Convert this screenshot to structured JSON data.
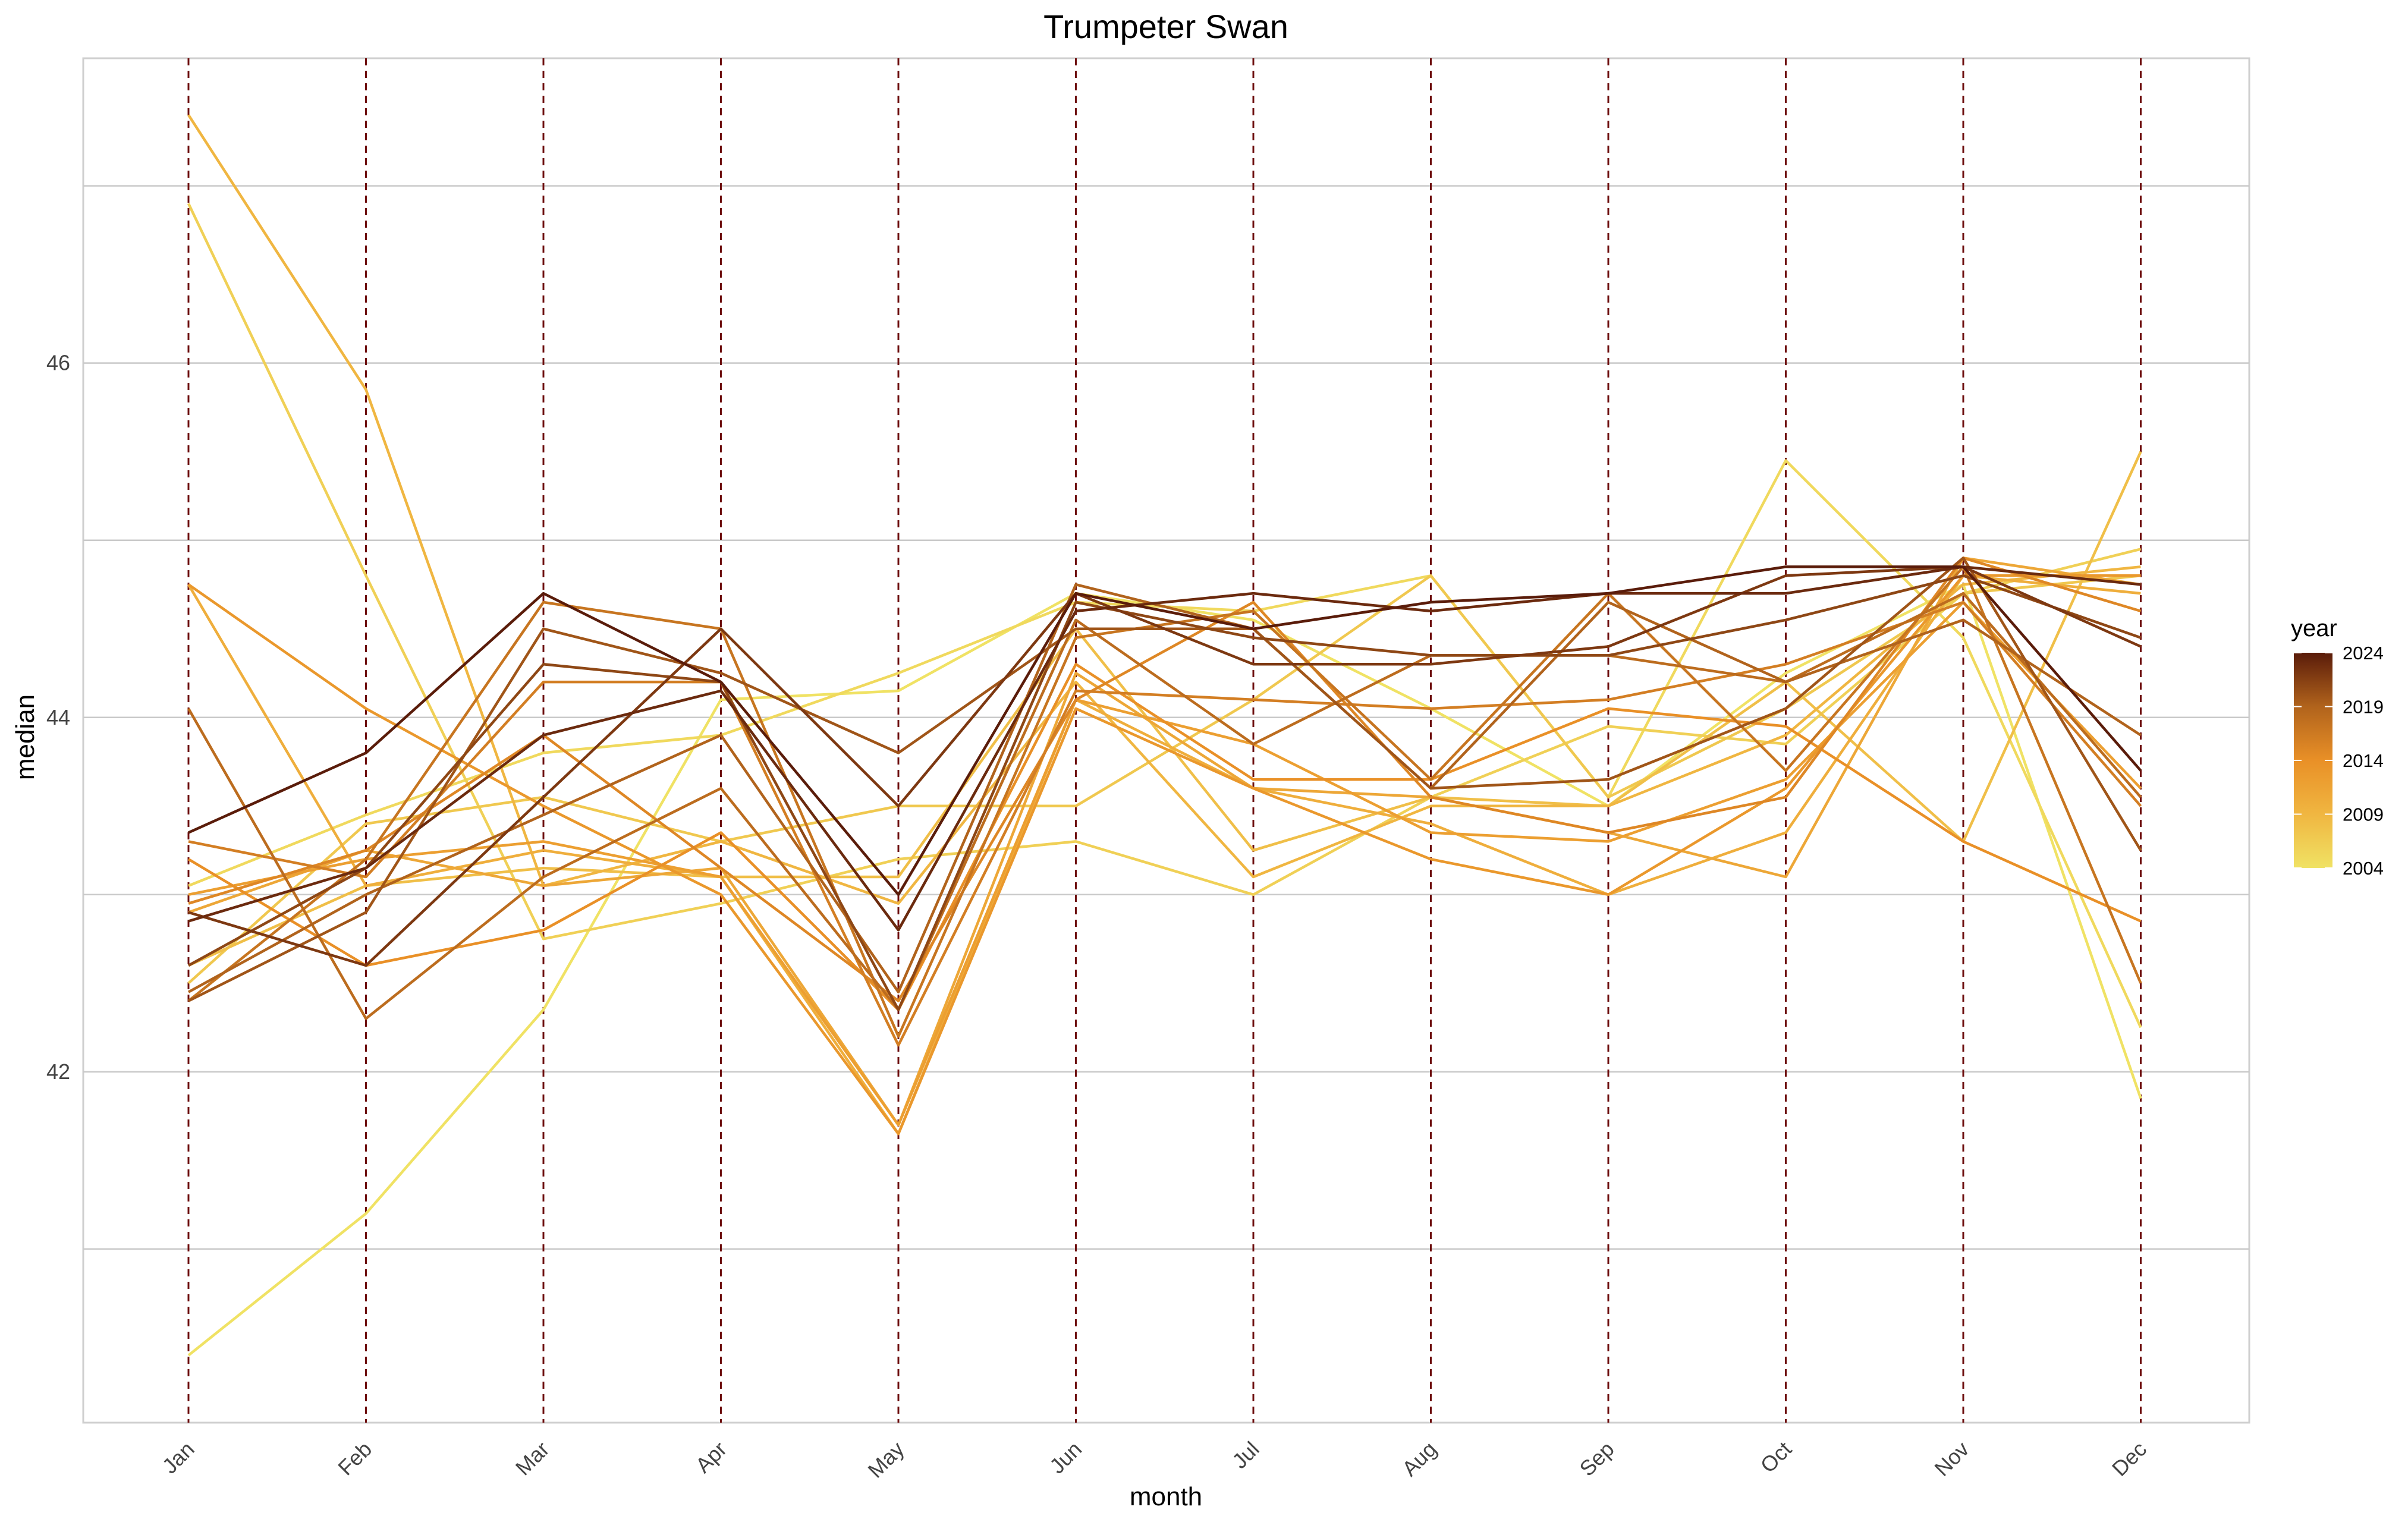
{
  "chart_data": {
    "type": "line",
    "title": "Trumpeter Swan",
    "xlabel": "month",
    "ylabel": "median",
    "categories": [
      "Jan",
      "Feb",
      "Mar",
      "Apr",
      "May",
      "Jun",
      "Jul",
      "Aug",
      "Sep",
      "Oct",
      "Nov",
      "Dec"
    ],
    "ylim": [
      40.02,
      47.72
    ],
    "y_ticks": [
      42,
      44,
      46
    ],
    "grid": true,
    "vertical_reference_lines": "dashed at every month",
    "legend": {
      "title": "year",
      "position": "right",
      "labels": [
        2004,
        2009,
        2014,
        2019,
        2024
      ],
      "range": [
        2004,
        2024
      ],
      "colors": [
        "#f0e264",
        "#f0b641",
        "#e99027",
        "#b1631c",
        "#5a1c0a"
      ]
    },
    "series": [
      {
        "year": 2004,
        "values": [
          40.4,
          41.2,
          42.35,
          44.1,
          44.15,
          44.7,
          44.55,
          44.05,
          43.5,
          44.25,
          44.75,
          41.85
        ]
      },
      {
        "year": 2005,
        "values": [
          43.05,
          43.45,
          43.8,
          43.9,
          44.25,
          44.65,
          44.6,
          44.8,
          43.55,
          45.45,
          44.45,
          42.25
        ]
      },
      {
        "year": 2006,
        "values": [
          46.9,
          44.8,
          42.75,
          42.95,
          43.2,
          43.3,
          43.0,
          43.55,
          43.95,
          43.85,
          44.7,
          44.95
        ]
      },
      {
        "year": 2007,
        "values": [
          42.5,
          43.4,
          43.55,
          43.3,
          43.5,
          43.5,
          44.1,
          44.8,
          43.55,
          44.05,
          44.7,
          44.8
        ]
      },
      {
        "year": 2008,
        "values": [
          42.6,
          43.05,
          43.15,
          43.1,
          43.1,
          44.5,
          43.25,
          43.55,
          43.5,
          44.2,
          43.3,
          45.5
        ]
      },
      {
        "year": 2009,
        "values": [
          47.4,
          45.85,
          43.05,
          43.3,
          42.95,
          44.2,
          43.1,
          43.5,
          43.5,
          43.9,
          44.75,
          44.85
        ]
      },
      {
        "year": 2010,
        "values": [
          44.75,
          43.05,
          43.25,
          43.1,
          41.65,
          44.1,
          43.6,
          43.4,
          43.0,
          43.35,
          44.8,
          44.7
        ]
      },
      {
        "year": 2011,
        "values": [
          42.9,
          43.25,
          43.05,
          43.15,
          41.7,
          44.25,
          43.6,
          43.55,
          43.35,
          43.1,
          44.9,
          44.75
        ]
      },
      {
        "year": 2012,
        "values": [
          43.0,
          43.2,
          43.3,
          43.1,
          41.7,
          44.1,
          43.85,
          43.35,
          43.3,
          43.65,
          44.65,
          43.6
        ]
      },
      {
        "year": 2013,
        "values": [
          44.75,
          44.05,
          43.5,
          43.0,
          41.65,
          44.05,
          43.6,
          43.2,
          43.0,
          43.6,
          44.8,
          44.8
        ]
      },
      {
        "year": 2014,
        "values": [
          43.2,
          42.6,
          42.8,
          43.35,
          42.35,
          44.3,
          43.65,
          43.65,
          44.05,
          43.95,
          43.3,
          42.85
        ]
      },
      {
        "year": 2015,
        "values": [
          42.95,
          43.25,
          43.9,
          43.15,
          42.4,
          44.1,
          44.65,
          43.55,
          43.35,
          43.55,
          44.9,
          44.6
        ]
      },
      {
        "year": 2016,
        "values": [
          43.3,
          43.1,
          44.2,
          44.2,
          42.15,
          44.15,
          44.1,
          44.05,
          44.1,
          44.3,
          44.65,
          43.5
        ]
      },
      {
        "year": 2017,
        "values": [
          42.4,
          43.2,
          44.65,
          44.5,
          42.2,
          44.45,
          44.6,
          43.65,
          44.7,
          43.7,
          44.85,
          42.5
        ]
      },
      {
        "year": 2018,
        "values": [
          44.05,
          42.3,
          43.1,
          43.6,
          42.35,
          44.55,
          43.85,
          44.35,
          44.35,
          44.2,
          44.7,
          43.55
        ]
      },
      {
        "year": 2019,
        "values": [
          42.45,
          43.0,
          43.45,
          43.9,
          42.45,
          44.75,
          44.5,
          43.6,
          44.65,
          44.2,
          44.55,
          43.9
        ]
      },
      {
        "year": 2020,
        "values": [
          42.4,
          42.9,
          44.5,
          44.25,
          43.8,
          44.5,
          44.5,
          43.6,
          43.65,
          44.05,
          44.9,
          43.25
        ]
      },
      {
        "year": 2021,
        "values": [
          42.6,
          43.15,
          44.3,
          44.2,
          42.35,
          44.65,
          44.45,
          44.35,
          44.35,
          44.55,
          44.8,
          44.45
        ]
      },
      {
        "year": 2022,
        "values": [
          42.9,
          42.6,
          43.55,
          44.5,
          43.5,
          44.7,
          44.3,
          44.3,
          44.4,
          44.8,
          44.85,
          44.4
        ]
      },
      {
        "year": 2023,
        "values": [
          42.85,
          43.15,
          43.9,
          44.15,
          42.8,
          44.6,
          44.7,
          44.6,
          44.7,
          44.7,
          44.85,
          44.75
        ]
      },
      {
        "year": 2024,
        "values": [
          43.35,
          43.8,
          44.7,
          44.2,
          43.0,
          44.7,
          44.5,
          44.65,
          44.7,
          44.85,
          44.85,
          43.7
        ]
      }
    ]
  }
}
